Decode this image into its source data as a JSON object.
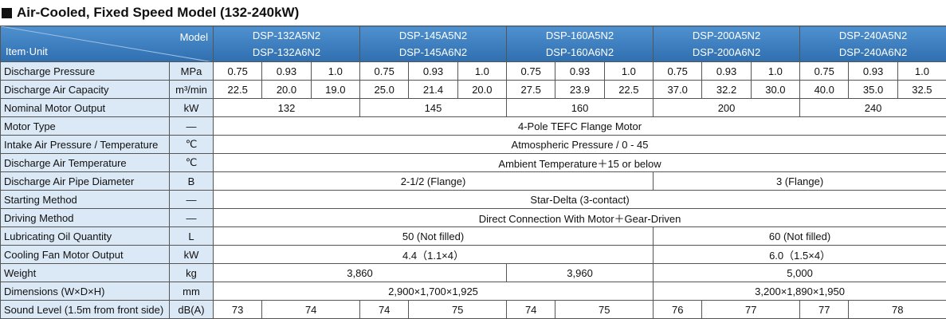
{
  "title": "Air-Cooled, Fixed Speed Model (132-240kW)",
  "header": {
    "model_label": "Model",
    "item_unit_label": "Item·Unit",
    "models": [
      [
        "DSP-132A5N2",
        "DSP-132A6N2"
      ],
      [
        "DSP-145A5N2",
        "DSP-145A6N2"
      ],
      [
        "DSP-160A5N2",
        "DSP-160A6N2"
      ],
      [
        "DSP-200A5N2",
        "DSP-200A6N2"
      ],
      [
        "DSP-240A5N2",
        "DSP-240A6N2"
      ]
    ]
  },
  "rows": [
    {
      "item": "Discharge Pressure",
      "unit": "MPa",
      "cells": [
        "0.75",
        "0.93",
        "1.0",
        "0.75",
        "0.93",
        "1.0",
        "0.75",
        "0.93",
        "1.0",
        "0.75",
        "0.93",
        "1.0",
        "0.75",
        "0.93",
        "1.0"
      ]
    },
    {
      "item": "Discharge Air Capacity",
      "unit": "m³/min",
      "cells": [
        "22.5",
        "20.0",
        "19.0",
        "25.0",
        "21.4",
        "20.0",
        "27.5",
        "23.9",
        "22.5",
        "37.0",
        "32.2",
        "30.0",
        "40.0",
        "35.0",
        "32.5"
      ]
    },
    {
      "item": "Nominal Motor Output",
      "unit": "kW",
      "cells": [
        "132",
        "145",
        "160",
        "200",
        "240"
      ]
    },
    {
      "item": "Motor Type",
      "unit": "—",
      "cells": [
        "4-Pole TEFC Flange Motor"
      ]
    },
    {
      "item": "Intake Air Pressure / Temperature",
      "unit": "℃",
      "cells": [
        "Atmospheric Pressure / 0 - 45"
      ]
    },
    {
      "item": "Discharge Air Temperature",
      "unit": "℃",
      "cells": [
        "Ambient Temperature＋15 or below"
      ]
    },
    {
      "item": "Discharge Air Pipe Diameter",
      "unit": "B",
      "cells": [
        "2-1/2 (Flange)",
        "3 (Flange)"
      ]
    },
    {
      "item": "Starting Method",
      "unit": "—",
      "cells": [
        "Star-Delta (3-contact)"
      ]
    },
    {
      "item": "Driving Method",
      "unit": "—",
      "cells": [
        "Direct Connection With Motor＋Gear-Driven"
      ]
    },
    {
      "item": "Lubricating Oil Quantity",
      "unit": "L",
      "cells": [
        "50 (Not filled)",
        "60 (Not filled)"
      ]
    },
    {
      "item": "Cooling Fan Motor Output",
      "unit": "kW",
      "cells": [
        "4.4（1.1×4）",
        "6.0（1.5×4）"
      ]
    },
    {
      "item": "Weight",
      "unit": "kg",
      "cells": [
        "3,860",
        "3,960",
        "5,000"
      ]
    },
    {
      "item": "Dimensions (W×D×H)",
      "unit": "mm",
      "cells": [
        "2,900×1,700×1,925",
        "3,200×1,890×1,950"
      ]
    },
    {
      "item": "Sound Level (1.5m from front side)",
      "unit": "dB(A)",
      "cells": [
        "73",
        "74",
        "74",
        "75",
        "74",
        "75",
        "76",
        "77",
        "77",
        "78"
      ]
    }
  ]
}
